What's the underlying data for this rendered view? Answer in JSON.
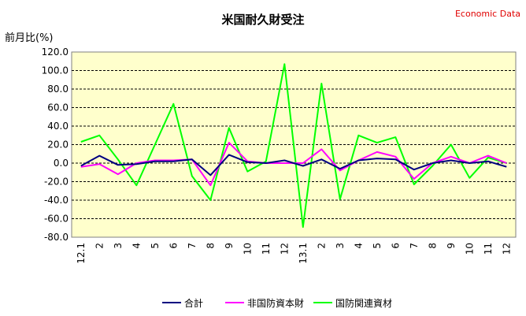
{
  "chart_data": {
    "type": "line",
    "title": "米国耐久財受注",
    "source_label": "Economic Data",
    "ylabel": "前月比(%)",
    "ylim": [
      -80,
      120
    ],
    "yticks": [
      "120.0",
      "100.0",
      "80.0",
      "60.0",
      "40.0",
      "20.0",
      "0.0",
      "-20.0",
      "-40.0",
      "-60.0",
      "-80.0"
    ],
    "grid": true,
    "legend_position": "bottom",
    "categories": [
      "12.1",
      "2",
      "3",
      "4",
      "5",
      "6",
      "7",
      "8",
      "9",
      "10",
      "11",
      "12",
      "13.1",
      "2",
      "3",
      "4",
      "5",
      "6",
      "7",
      "8",
      "9",
      "10",
      "11",
      "12"
    ],
    "series": [
      {
        "name": "合計",
        "color": "#000080",
        "values": [
          -3,
          8,
          -2,
          -1,
          2,
          2,
          4,
          -13,
          9,
          1,
          0,
          3,
          -3,
          4,
          -6,
          3,
          5,
          4,
          -7,
          0,
          3,
          0,
          2,
          -4
        ]
      },
      {
        "name": "非国防資本財",
        "color": "#ff00ff",
        "values": [
          -4,
          -1,
          -12,
          0,
          3,
          3,
          4,
          -24,
          22,
          2,
          0,
          0,
          0,
          15,
          -8,
          3,
          12,
          7,
          -17,
          0,
          7,
          0,
          8,
          0
        ]
      },
      {
        "name": "国防関連資材",
        "color": "#00ff00",
        "values": [
          23,
          30,
          4,
          -24,
          20,
          64,
          -14,
          -40,
          38,
          -9,
          2,
          107,
          -69,
          86,
          -39,
          30,
          22,
          28,
          -23,
          -3,
          20,
          -16,
          6,
          0
        ]
      }
    ]
  }
}
